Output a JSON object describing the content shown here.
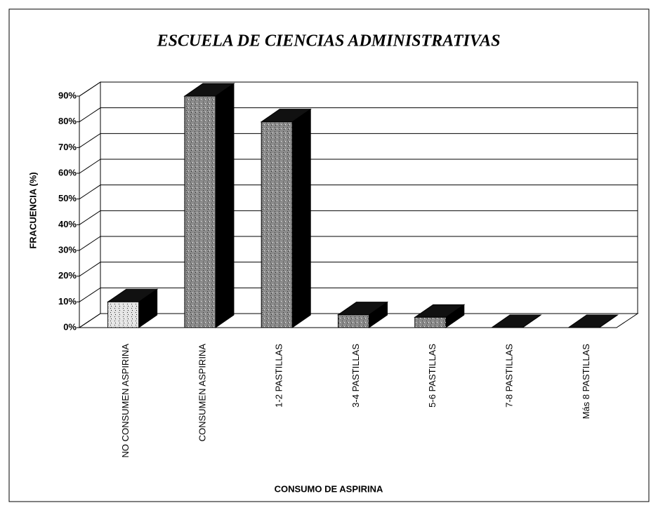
{
  "chart_data": {
    "type": "bar3d",
    "title": "ESCUELA DE CIENCIAS ADMINISTRATIVAS",
    "x_label": "CONSUMO DE ASPIRINA",
    "y_label": "FRACUENCIA (%)",
    "categories": [
      "NO CONSUMEN ASPIRINA",
      "CONSUMEN ASPIRINA",
      "1-2 PASTILLAS",
      "3-4 PASTILLAS",
      "5-6 PASTILLAS",
      "7-8 PASTILLAS",
      "Más 8 PASTILLAS"
    ],
    "values": [
      10,
      90,
      80,
      5,
      4,
      0,
      0
    ],
    "colors": [
      "#e4e4e4",
      "#8c8c8c",
      "#8c8c8c",
      "#8c8c8c",
      "#8c8c8c",
      "#8c8c8c",
      "#8c8c8c"
    ],
    "ylim": [
      0,
      90
    ],
    "yticks": [
      {
        "value": 0,
        "label": "0%"
      },
      {
        "value": 10,
        "label": "10%"
      },
      {
        "value": 20,
        "label": "20%"
      },
      {
        "value": 30,
        "label": "30%"
      },
      {
        "value": 40,
        "label": "40%"
      },
      {
        "value": 50,
        "label": "50%"
      },
      {
        "value": 60,
        "label": "60%"
      },
      {
        "value": 70,
        "label": "70%"
      },
      {
        "value": 80,
        "label": "80%"
      },
      {
        "value": 90,
        "label": "90%"
      }
    ],
    "grid": true
  }
}
